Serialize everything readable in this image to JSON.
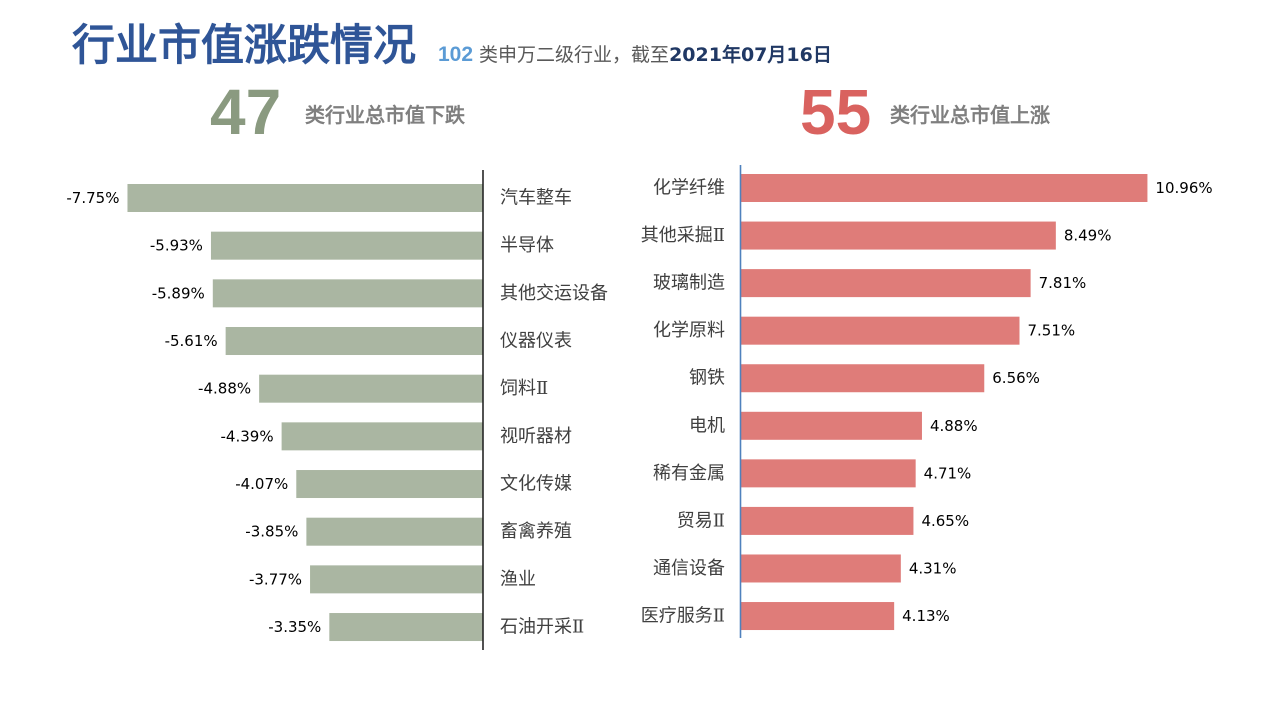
{
  "title": "行业市值涨跌情况",
  "subtitle": {
    "count": "102",
    "text": "类申万二级行业，截至",
    "date": "2021年07月16日"
  },
  "decline_header": {
    "count": "47",
    "text": "类行业总市值下跌"
  },
  "rise_header": {
    "count": "55",
    "text": "类行业总市值上涨"
  },
  "colors": {
    "title": "#2f5597",
    "subtitle_count": "#5b9bd5",
    "subtitle_text": "#595959",
    "subtitle_date": "#203864",
    "decline_accent": "#8a9a80",
    "rise_accent": "#d9625f",
    "header_text": "#7f7f7f",
    "decline_axis": "#262626",
    "rise_axis": "#4f81bd",
    "label_text": "#404040",
    "value_text": "#000000"
  },
  "chart_data": [
    {
      "type": "bar",
      "orientation": "horizontal",
      "categories": [
        "汽车整车",
        "半导体",
        "其他交运设备",
        "仪器仪表",
        "饲料Ⅱ",
        "视听器材",
        "文化传媒",
        "畜禽养殖",
        "渔业",
        "石油开采Ⅱ"
      ],
      "values": [
        -7.75,
        -5.93,
        -5.89,
        -5.61,
        -4.88,
        -4.39,
        -4.07,
        -3.85,
        -3.77,
        -3.35
      ],
      "data_labels": [
        "-7.75%",
        "-5.93%",
        "-5.89%",
        "-5.61%",
        "-4.88%",
        "-4.39%",
        "-4.07%",
        "-3.85%",
        "-3.77%",
        "-3.35%"
      ],
      "xlim": [
        -8,
        0
      ],
      "grid": false,
      "color": "#aab6a2"
    },
    {
      "type": "bar",
      "orientation": "horizontal",
      "categories": [
        "化学纤维",
        "其他采掘Ⅱ",
        "玻璃制造",
        "化学原料",
        "钢铁",
        "电机",
        "稀有金属",
        "贸易Ⅱ",
        "通信设备",
        "医疗服务Ⅱ"
      ],
      "values": [
        10.96,
        8.49,
        7.81,
        7.51,
        6.56,
        4.88,
        4.71,
        4.65,
        4.31,
        4.13
      ],
      "data_labels": [
        "10.96%",
        "8.49%",
        "7.81%",
        "7.51%",
        "6.56%",
        "4.88%",
        "4.71%",
        "4.65%",
        "4.31%",
        "4.13%"
      ],
      "xlim": [
        0,
        12
      ],
      "grid": false,
      "color": "#df7c79"
    }
  ]
}
